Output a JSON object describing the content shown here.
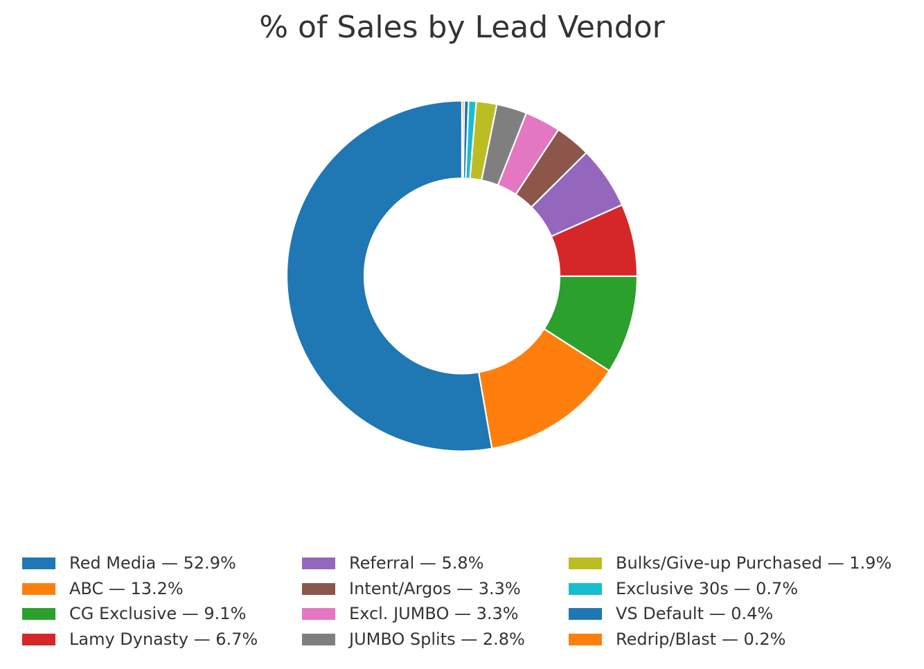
{
  "chart_data": {
    "type": "pie",
    "title": "% of Sales by Lead Vendor",
    "donut": true,
    "legend_position": "bottom",
    "legend_columns": 3,
    "slices": [
      {
        "label": "Red Media — 52.9%",
        "name": "Red Media",
        "value": 52.9,
        "color": "#1f77b4"
      },
      {
        "label": "ABC — 13.2%",
        "name": "ABC",
        "value": 13.2,
        "color": "#ff7f0e"
      },
      {
        "label": "CG Exclusive — 9.1%",
        "name": "CG Exclusive",
        "value": 9.1,
        "color": "#2ca02c"
      },
      {
        "label": "Lamy Dynasty — 6.7%",
        "name": "Lamy Dynasty",
        "value": 6.7,
        "color": "#d62728"
      },
      {
        "label": "Referral — 5.8%",
        "name": "Referral",
        "value": 5.8,
        "color": "#9467bd"
      },
      {
        "label": "Intent/Argos — 3.3%",
        "name": "Intent/Argos",
        "value": 3.3,
        "color": "#8c564b"
      },
      {
        "label": "Excl. JUMBO — 3.3%",
        "name": "Excl. JUMBO",
        "value": 3.3,
        "color": "#e377c2"
      },
      {
        "label": "JUMBO Splits — 2.8%",
        "name": "JUMBO Splits",
        "value": 2.8,
        "color": "#7f7f7f"
      },
      {
        "label": "Bulks/Give-up Purchased — 1.9%",
        "name": "Bulks/Give-up Purchased",
        "value": 1.9,
        "color": "#bcbd22"
      },
      {
        "label": "Exclusive 30s — 0.7%",
        "name": "Exclusive 30s",
        "value": 0.7,
        "color": "#17becf"
      },
      {
        "label": "VS Default — 0.4%",
        "name": "VS Default",
        "value": 0.4,
        "color": "#1f77b4"
      },
      {
        "label": "Redrip/Blast — 0.2%",
        "name": "Redrip/Blast",
        "value": 0.2,
        "color": "#ff7f0e"
      }
    ]
  }
}
